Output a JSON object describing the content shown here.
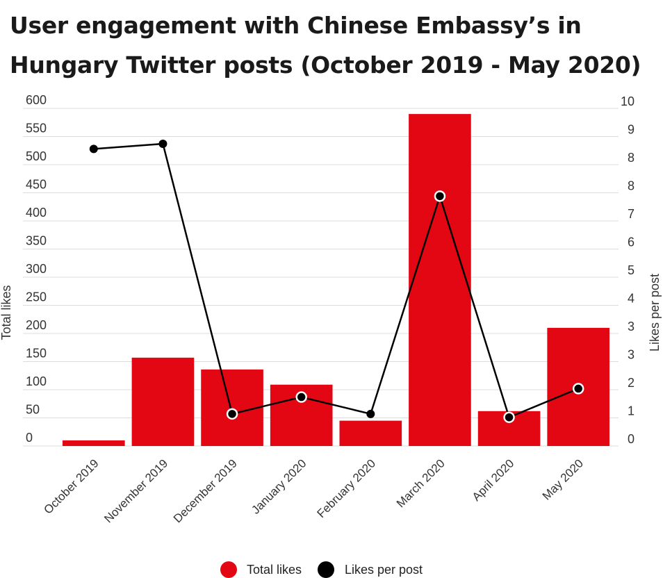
{
  "chart_data": {
    "type": "bar",
    "title": "User engagement with Chinese Embassy’s in Hungary Twitter posts (October 2019 - May 2020)",
    "categories": [
      "October 2019",
      "November 2019",
      "December 2019",
      "January 2020",
      "February 2020",
      "March 2020",
      "April 2020",
      "May 2020"
    ],
    "series": [
      {
        "name": "Total likes",
        "type": "bar",
        "axis": "left",
        "color": "#e30613",
        "values": [
          10,
          157,
          136,
          109,
          45,
          590,
          62,
          210
        ]
      },
      {
        "name": "Likes per post",
        "type": "line",
        "axis": "right",
        "color": "#000000",
        "values": [
          8.8,
          8.95,
          0.95,
          1.45,
          0.95,
          7.4,
          0.85,
          1.7
        ]
      }
    ],
    "ylabel": "Total likes",
    "y2label": "Likes per post",
    "ylim": [
      0,
      600
    ],
    "y2lim": [
      0,
      10
    ],
    "yticks": [
      "0",
      "50",
      "100",
      "150",
      "200",
      "250",
      "300",
      "350",
      "400",
      "450",
      "500",
      "550",
      "600"
    ],
    "y2ticks": [
      "0",
      "1",
      "2",
      "3",
      "3",
      "4",
      "5",
      "6",
      "7",
      "8",
      "8",
      "9",
      "10"
    ],
    "grid": true,
    "legend_position": "bottom-center"
  }
}
